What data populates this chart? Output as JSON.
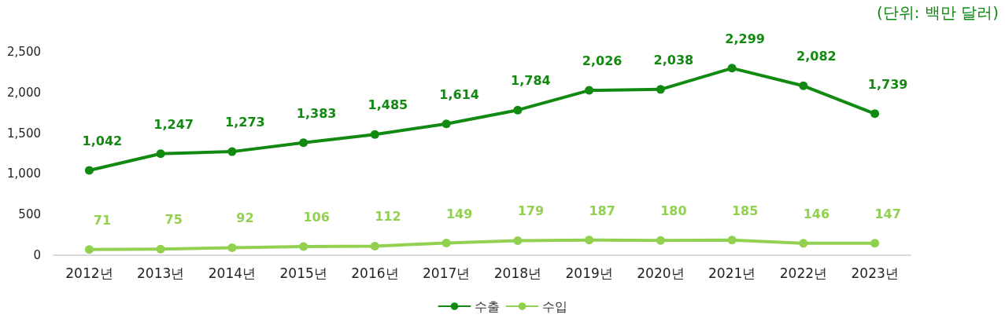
{
  "chart_data": {
    "type": "line",
    "annotations": [
      "(단위: 백만 달러)"
    ],
    "categories": [
      "2012년",
      "2013년",
      "2014년",
      "2015년",
      "2016년",
      "2017년",
      "2018년",
      "2019년",
      "2020년",
      "2021년",
      "2022년",
      "2023년"
    ],
    "series": [
      {
        "name": "수출",
        "color": "#128a12",
        "values": [
          1042,
          1247,
          1273,
          1383,
          1485,
          1614,
          1784,
          2026,
          2038,
          2299,
          2082,
          1739
        ],
        "value_labels": [
          "1,042",
          "1,247",
          "1,273",
          "1,383",
          "1,485",
          "1,614",
          "1,784",
          "2,026",
          "2,038",
          "2,299",
          "2,082",
          "1,739"
        ]
      },
      {
        "name": "수입",
        "color": "#92d050",
        "values": [
          71,
          75,
          92,
          106,
          112,
          149,
          179,
          187,
          180,
          185,
          146,
          147
        ],
        "value_labels": [
          "71",
          "75",
          "92",
          "106",
          "112",
          "149",
          "179",
          "187",
          "180",
          "185",
          "146",
          "147"
        ]
      }
    ],
    "ylim": [
      0,
      2500
    ],
    "yticks": [
      0,
      500,
      {
        "value": 1000,
        "label": "1,000"
      },
      {
        "value": 1500,
        "label": "1,500"
      },
      {
        "value": 2000,
        "label": "2,000"
      },
      {
        "value": 2500,
        "label": "2,500"
      }
    ],
    "grid": false,
    "legend": "bottom",
    "marker": "circle",
    "line_style": "solid"
  }
}
